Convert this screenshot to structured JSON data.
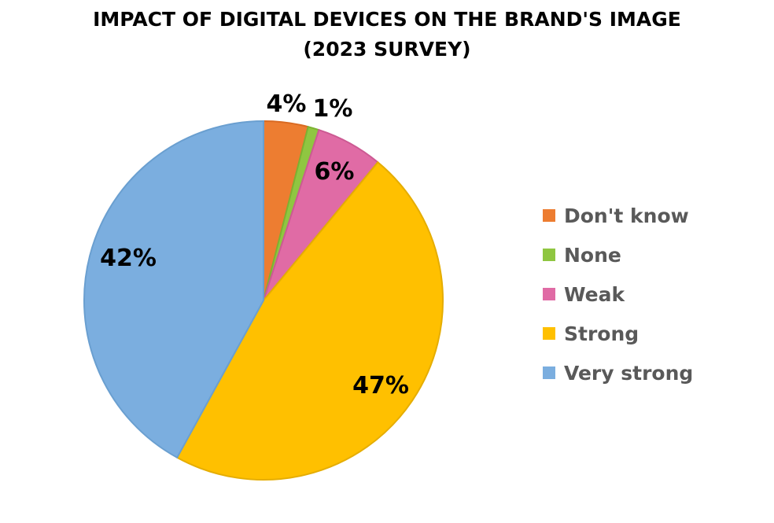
{
  "chart_data": {
    "type": "pie",
    "title": "IMPACT OF DIGITAL DEVICES ON THE BRAND'S IMAGE",
    "subtitle": "(2023 SURVEY)",
    "categories": [
      "Don't know",
      "None",
      "Weak",
      "Strong",
      "Very strong"
    ],
    "values": [
      4,
      1,
      6,
      47,
      42
    ],
    "data_labels": [
      "4%",
      "1%",
      "6%",
      "47%",
      "42%"
    ],
    "colors": [
      "#ED7D31",
      "#8FC641",
      "#E06BA5",
      "#FFC000",
      "#7BAEDF"
    ],
    "stroke_colors": [
      "#d96a22",
      "#7cb232",
      "#cc5a93",
      "#e5ad00",
      "#6a9fd0"
    ],
    "legend_position": "right",
    "start_angle_deg": 0,
    "direction": "clockwise"
  }
}
